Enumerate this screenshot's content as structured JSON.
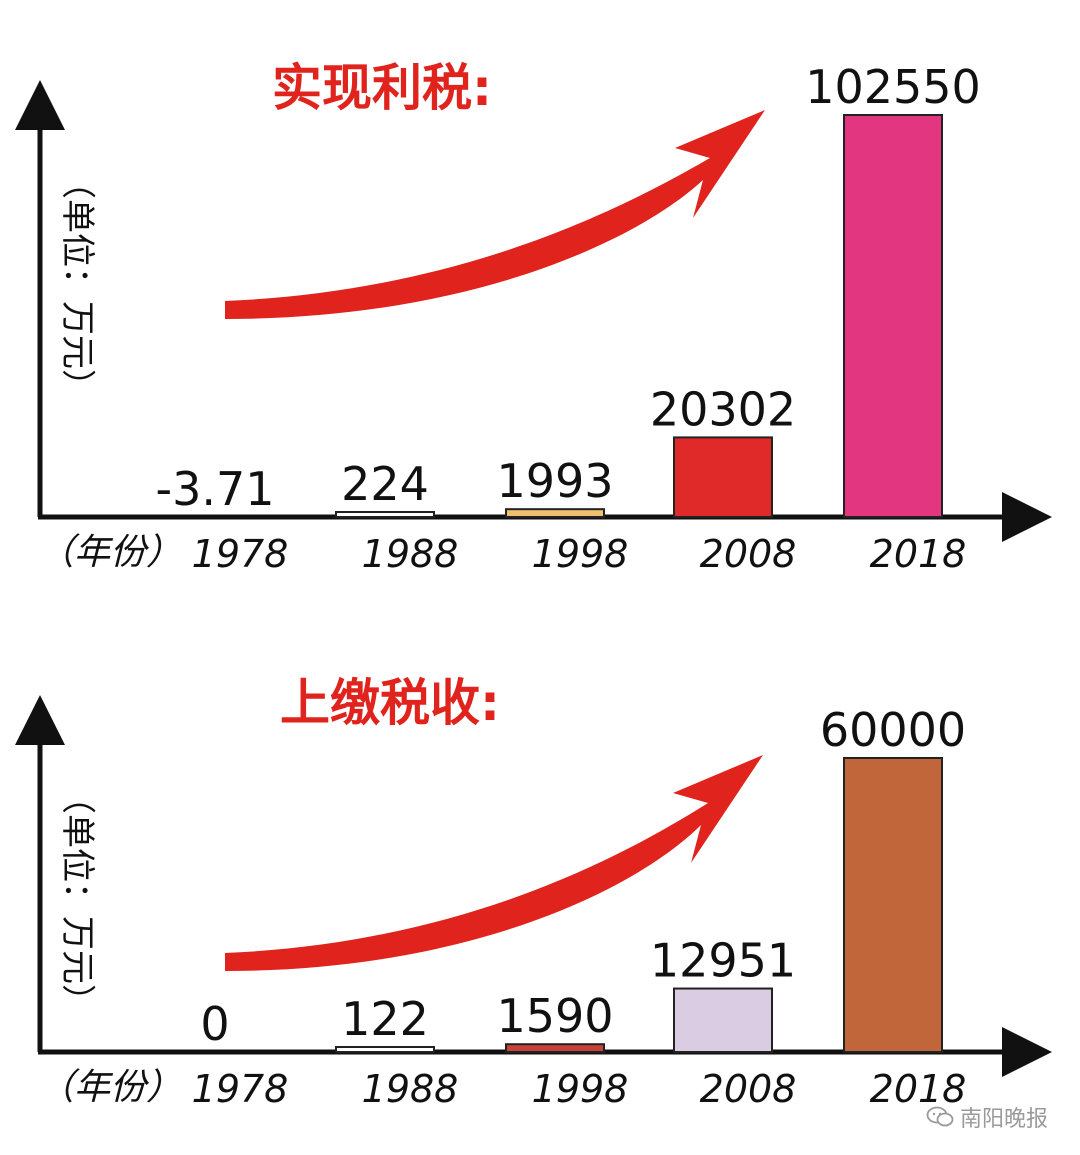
{
  "chart_data": [
    {
      "type": "bar",
      "title": "实现利税:",
      "ylabel": "（单位：万元）",
      "xlabel": "（年份）",
      "categories": [
        "1978",
        "1988",
        "1998",
        "2008",
        "2018"
      ],
      "values": [
        -3.71,
        224,
        1993,
        20302,
        102550
      ],
      "value_labels": [
        "-3.71",
        "224",
        "1993",
        "20302",
        "102550"
      ],
      "bar_colors": [
        "#ffffff",
        "#ffffff",
        "#f0c070",
        "#e02a2a",
        "#e33680"
      ],
      "ylim": [
        0,
        102550
      ],
      "grid": false
    },
    {
      "type": "bar",
      "title": "上缴税收:",
      "ylabel": "（单位：万元）",
      "xlabel": "（年份）",
      "categories": [
        "1978",
        "1988",
        "1998",
        "2008",
        "2018"
      ],
      "values": [
        0,
        122,
        1590,
        12951,
        60000
      ],
      "value_labels": [
        "0",
        "122",
        "1590",
        "12951",
        "60000"
      ],
      "bar_colors": [
        "#ffffff",
        "#ffffff",
        "#c8423a",
        "#d9cce3",
        "#c0663a"
      ],
      "ylim": [
        0,
        60000
      ],
      "grid": false
    }
  ],
  "watermark": {
    "text": "南阳晚报",
    "icon": "wechat-icon"
  },
  "colors": {
    "arrow": "#e0231c",
    "axis": "#111111",
    "title": "#e0231c"
  }
}
